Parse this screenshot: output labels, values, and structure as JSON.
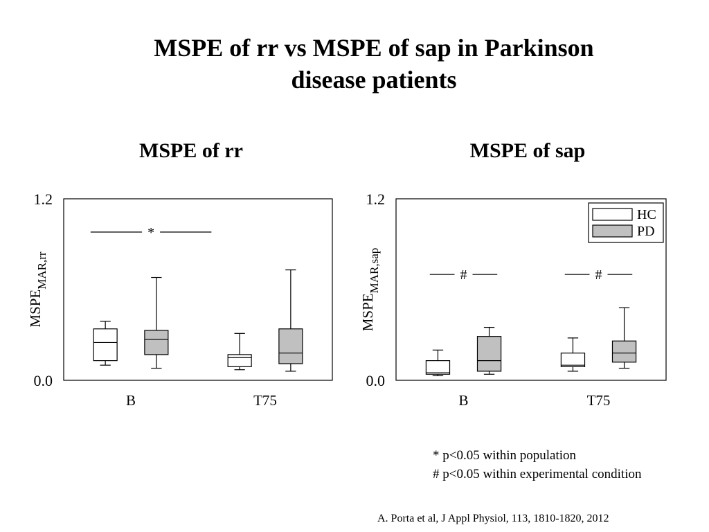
{
  "slide": {
    "title_line1": "MSPE of rr vs MSPE of sap in Parkinson",
    "title_line2": "disease patients",
    "notes": [
      "* p<0.05 within population",
      "# p<0.05 within experimental condition"
    ],
    "citation": "A. Porta et al, J Appl Physiol, 113, 1810-1820, 2012"
  },
  "colors": {
    "hc": "#ffffff",
    "pd": "#c0c0c0",
    "stroke": "#000000"
  },
  "chart_data": [
    {
      "type": "box",
      "title": "MSPE of rr",
      "ylabel": "MSPE",
      "ylabel_sub": "MAR,rr",
      "ylim": [
        0.0,
        1.2
      ],
      "yticks": [
        "0.0",
        "1.2"
      ],
      "categories": [
        "B",
        "T75"
      ],
      "series": [
        {
          "name": "HC",
          "boxes": [
            {
              "min": 0.1,
              "q1": 0.13,
              "median": 0.25,
              "q3": 0.34,
              "max": 0.39
            },
            {
              "min": 0.07,
              "q1": 0.09,
              "median": 0.15,
              "q3": 0.17,
              "max": 0.31
            }
          ]
        },
        {
          "name": "PD",
          "boxes": [
            {
              "min": 0.08,
              "q1": 0.17,
              "median": 0.27,
              "q3": 0.33,
              "max": 0.68
            },
            {
              "min": 0.06,
              "q1": 0.11,
              "median": 0.18,
              "q3": 0.34,
              "max": 0.73
            }
          ]
        }
      ],
      "annotations": [
        {
          "symbol": "*",
          "from_x": 0.7,
          "to_x": 1.6,
          "y": 0.98
        }
      ]
    },
    {
      "type": "box",
      "title": "MSPE of sap",
      "ylabel": "MSPE",
      "ylabel_sub": "MAR,sap",
      "ylim": [
        0.0,
        1.2
      ],
      "yticks": [
        "0.0",
        "1.2"
      ],
      "categories": [
        "B",
        "T75"
      ],
      "legend": {
        "position": "top-right",
        "entries": [
          "HC",
          "PD"
        ]
      },
      "series": [
        {
          "name": "HC",
          "boxes": [
            {
              "min": 0.03,
              "q1": 0.04,
              "median": 0.05,
              "q3": 0.13,
              "max": 0.2
            },
            {
              "min": 0.06,
              "q1": 0.09,
              "median": 0.1,
              "q3": 0.18,
              "max": 0.28
            }
          ]
        },
        {
          "name": "PD",
          "boxes": [
            {
              "min": 0.04,
              "q1": 0.06,
              "median": 0.13,
              "q3": 0.29,
              "max": 0.35
            },
            {
              "min": 0.08,
              "q1": 0.12,
              "median": 0.18,
              "q3": 0.26,
              "max": 0.48
            }
          ]
        }
      ],
      "annotations": [
        {
          "symbol": "#",
          "from_x": 0.75,
          "to_x": 1.25,
          "y": 0.7
        },
        {
          "symbol": "#",
          "from_x": 1.75,
          "to_x": 2.25,
          "y": 0.7
        }
      ]
    }
  ]
}
